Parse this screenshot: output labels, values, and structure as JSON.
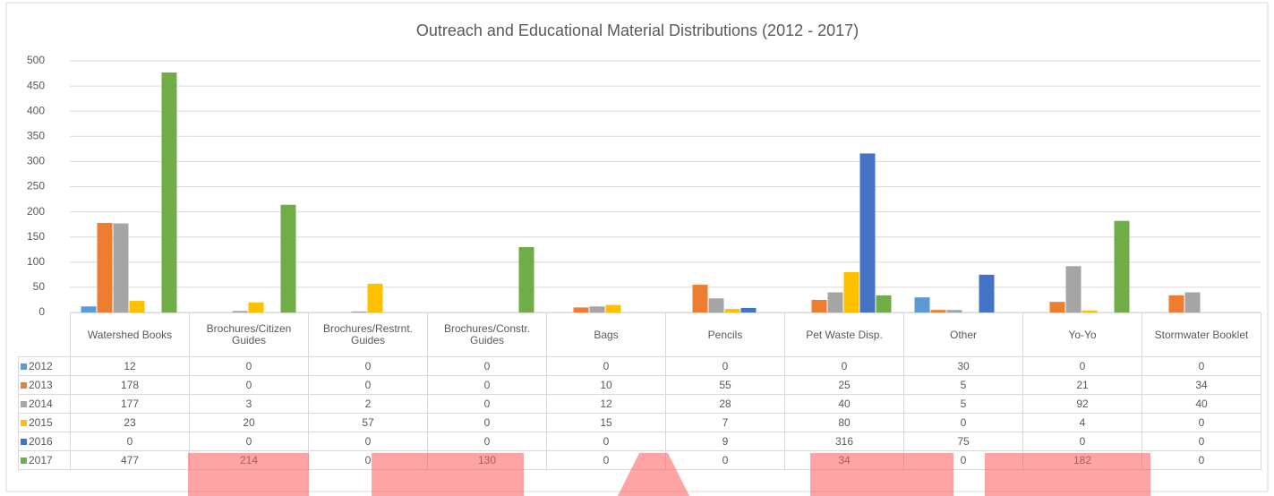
{
  "chart_data": {
    "type": "bar",
    "title": "Outreach and Educational Material Distributions (2012 - 2017)",
    "categories": [
      "Watershed Books",
      "Brochures/Citizen Guides",
      "Brochures/Restrnt. Guides",
      "Brochures/Constr. Guides",
      "Bags",
      "Pencils",
      "Pet Waste Disp.",
      "Other",
      "Yo-Yo",
      "Stormwater Booklet"
    ],
    "series": [
      {
        "name": "2012",
        "color": "#5b9bd5",
        "values": [
          12,
          0,
          0,
          0,
          0,
          0,
          0,
          30,
          0,
          0
        ]
      },
      {
        "name": "2013",
        "color": "#ed7d31",
        "values": [
          178,
          0,
          0,
          0,
          10,
          55,
          25,
          5,
          21,
          34
        ]
      },
      {
        "name": "2014",
        "color": "#a5a5a5",
        "values": [
          177,
          3,
          2,
          0,
          12,
          28,
          40,
          5,
          92,
          40
        ]
      },
      {
        "name": "2015",
        "color": "#ffc000",
        "values": [
          23,
          20,
          57,
          0,
          15,
          7,
          80,
          0,
          4,
          0
        ]
      },
      {
        "name": "2016",
        "color": "#4472c4",
        "values": [
          0,
          0,
          0,
          0,
          0,
          9,
          316,
          75,
          0,
          0
        ]
      },
      {
        "name": "2017",
        "color": "#70ad47",
        "values": [
          477,
          214,
          0,
          130,
          0,
          0,
          34,
          0,
          182,
          0
        ]
      }
    ],
    "ylim": [
      0,
      500
    ],
    "yticks": [
      0,
      50,
      100,
      150,
      200,
      250,
      300,
      350,
      400,
      450,
      500
    ],
    "grid": true
  }
}
